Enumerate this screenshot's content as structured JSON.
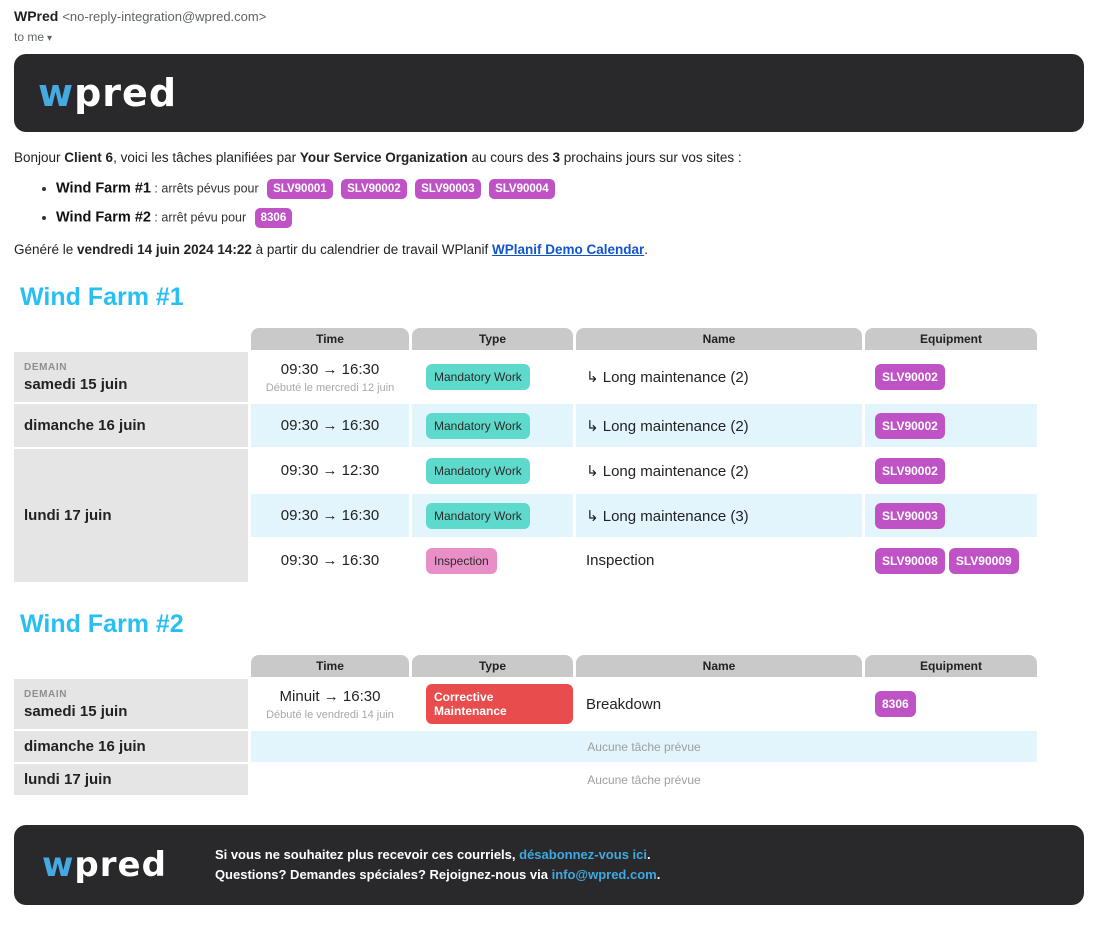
{
  "email_header": {
    "sender_name": "WPred",
    "sender_email": "<no-reply-integration@wpred.com>",
    "to_label": "to me",
    "caret": "▾"
  },
  "brand": {
    "logo_first": "w",
    "logo_rest": "pred"
  },
  "colors": {
    "accent_cyan": "#29bff2",
    "badge_purple": "#bf53c6",
    "badge_teal": "#5edacc",
    "badge_pink": "#e98fc8",
    "badge_red": "#e84c4c",
    "row_blue": "#e2f5fd",
    "link_blue": "#1155cc",
    "dark_bg": "#29292b"
  },
  "intro": {
    "p1": "Bonjour ",
    "client": "Client 6",
    "p2": ", voici les tâches planifiées par ",
    "org": "Your Service Organization",
    "p3": " au cours des ",
    "days": "3",
    "p4": " prochains jours sur vos sites :"
  },
  "sites": [
    {
      "name": "Wind Farm #1",
      "colon": " : ",
      "text": "arrêts pévus pour",
      "badges": [
        "SLV90001",
        "SLV90002",
        "SLV90003",
        "SLV90004"
      ]
    },
    {
      "name": "Wind Farm #2",
      "colon": " : ",
      "text": "arrêt pévu pour",
      "badges": [
        "8306"
      ]
    }
  ],
  "generated": {
    "p1": "Généré le ",
    "datetime": "vendredi 14 juin 2024 14:22",
    "p2": " à partir du calendrier de travail WPlanif ",
    "link": "WPlanif Demo Calendar",
    "p3": "."
  },
  "table_headers": {
    "time": "Time",
    "type": "Type",
    "name": "Name",
    "equipment": "Equipment"
  },
  "wf1": {
    "title": "Wind Farm #1",
    "rows": [
      {
        "tag": "DEMAIN",
        "date": "samedi 15 juin",
        "time": "09:30 → 16:30",
        "time_sub": "Débuté le mercredi 12 juin",
        "type": "Mandatory Work",
        "name": "↳ Long maintenance (2)",
        "equipment": [
          "SLV90002"
        ]
      },
      {
        "date": "dimanche 16 juin",
        "time": "09:30 → 16:30",
        "type": "Mandatory Work",
        "name": "↳ Long maintenance (2)",
        "equipment": [
          "SLV90002"
        ]
      },
      {
        "date": "lundi 17 juin",
        "time": "09:30 → 12:30",
        "type": "Mandatory Work",
        "name": "↳ Long maintenance (2)",
        "equipment": [
          "SLV90002"
        ]
      },
      {
        "time": "09:30 → 16:30",
        "type": "Mandatory Work",
        "name": "↳ Long maintenance (3)",
        "equipment": [
          "SLV90003"
        ]
      },
      {
        "time": "09:30 → 16:30",
        "type": "Inspection",
        "name": "Inspection",
        "equipment": [
          "SLV90008",
          "SLV90009"
        ]
      }
    ]
  },
  "wf2": {
    "title": "Wind Farm #2",
    "rows": [
      {
        "tag": "DEMAIN",
        "date": "samedi 15 juin",
        "time": "Minuit → 16:30",
        "time_sub": "Débuté le vendredi 14 juin",
        "type": "Corrective Maintenance",
        "name": "Breakdown",
        "equipment": [
          "8306"
        ]
      },
      {
        "date": "dimanche 16 juin",
        "none": "Aucune tâche prévue"
      },
      {
        "date": "lundi 17 juin",
        "none": "Aucune tâche prévue"
      }
    ]
  },
  "footer": {
    "line1_pre": "Si vous ne souhaitez plus recevoir ces courriels, ",
    "line1_link": "désabonnez-vous ici",
    "line1_post": ".",
    "line2_pre": "Questions? Demandes spéciales? Rejoignez-nous via ",
    "line2_link": "info@wpred.com",
    "line2_post": "."
  }
}
